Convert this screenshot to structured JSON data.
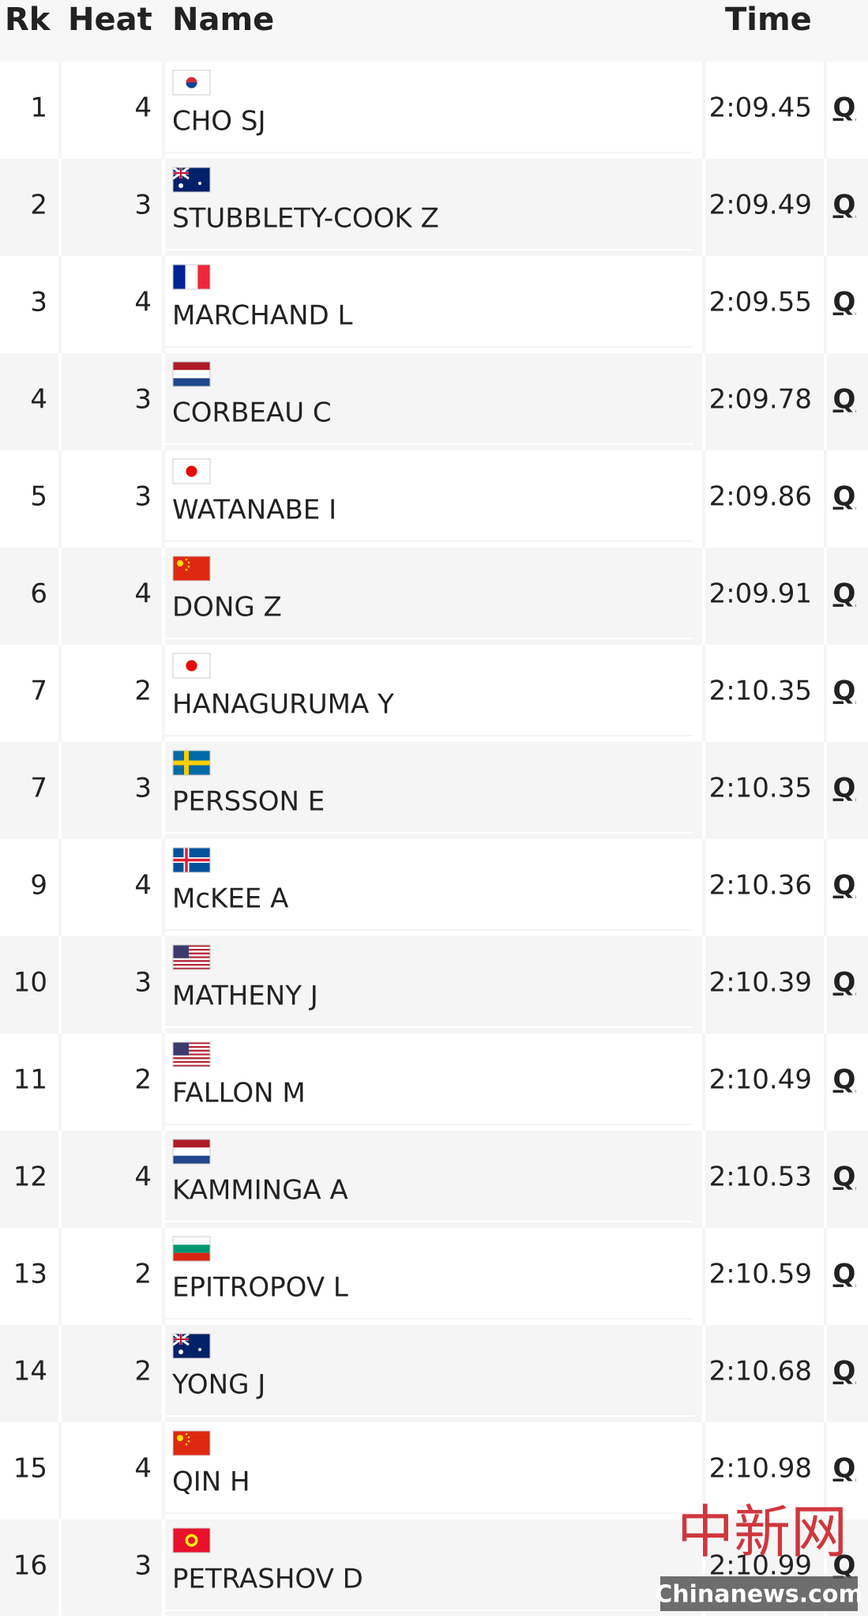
{
  "header": {
    "rk": "Rk",
    "heat": "Heat",
    "name": "Name",
    "time": "Time"
  },
  "rows": [
    [
      "1",
      "4",
      "CHO SJ",
      "2:09.45",
      "Q"
    ],
    [
      "2",
      "3",
      "STUBBLETY-COOK Z",
      "2:09.49",
      "Q"
    ],
    [
      "3",
      "4",
      "MARCHAND L",
      "2:09.55",
      "Q"
    ],
    [
      "4",
      "3",
      "CORBEAU C",
      "2:09.78",
      "Q"
    ],
    [
      "5",
      "3",
      "WATANABE I",
      "2:09.86",
      "Q"
    ],
    [
      "6",
      "4",
      "DONG Z",
      "2:09.91",
      "Q"
    ],
    [
      "7",
      "2",
      "HANAGURUMA Y",
      "2:10.35",
      "Q"
    ],
    [
      "7",
      "3",
      "PERSSON E",
      "2:10.35",
      "Q"
    ],
    [
      "9",
      "4",
      "McKEE A",
      "2:10.36",
      "Q"
    ],
    [
      "10",
      "3",
      "MATHENY J",
      "2:10.39",
      "Q"
    ],
    [
      "11",
      "2",
      "FALLON M",
      "2:10.49",
      "Q"
    ],
    [
      "12",
      "4",
      "KAMMINGA A",
      "2:10.53",
      "Q"
    ],
    [
      "13",
      "2",
      "EPITROPOV L",
      "2:10.59",
      "Q"
    ],
    [
      "14",
      "2",
      "YONG J",
      "2:10.68",
      "Q"
    ],
    [
      "15",
      "4",
      "QIN H",
      "2:10.98",
      "Q"
    ],
    [
      "16",
      "3",
      "PETRASHOV D",
      "2:10.99",
      "Q"
    ]
  ],
  "watermark": {
    "logo": "中新网",
    "site": "Chinanews.com"
  }
}
